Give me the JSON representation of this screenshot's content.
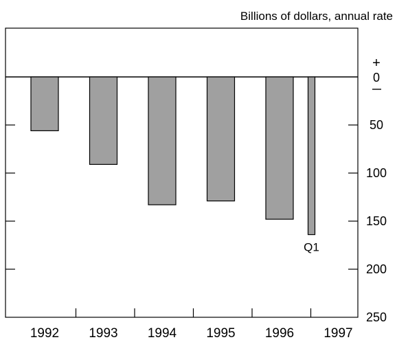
{
  "chart_data": {
    "type": "bar",
    "unit_label": "Billions of dollars, annual rate",
    "categories": [
      "1992",
      "1993",
      "1994",
      "1995",
      "1996",
      "1997"
    ],
    "bars": [
      {
        "year": "1992",
        "value": -56,
        "label": ""
      },
      {
        "year": "1993",
        "value": -91,
        "label": ""
      },
      {
        "year": "1994",
        "value": -133,
        "label": ""
      },
      {
        "year": "1995",
        "value": -129,
        "label": ""
      },
      {
        "year": "1996",
        "value": -148,
        "label": ""
      },
      {
        "year": "1997",
        "value": -164,
        "label": "Q1",
        "partial": true
      }
    ],
    "ylim": [
      -250,
      0
    ],
    "y_ticks": [
      {
        "value": 0,
        "label": "0"
      },
      {
        "value": -50,
        "label": "50"
      },
      {
        "value": -100,
        "label": "100"
      },
      {
        "value": -150,
        "label": "150"
      },
      {
        "value": -200,
        "label": "200"
      },
      {
        "value": -250,
        "label": "250"
      }
    ],
    "plus_sign": "+",
    "minus_sign": "–",
    "grid": false,
    "bar_color": "#a0a0a0"
  }
}
